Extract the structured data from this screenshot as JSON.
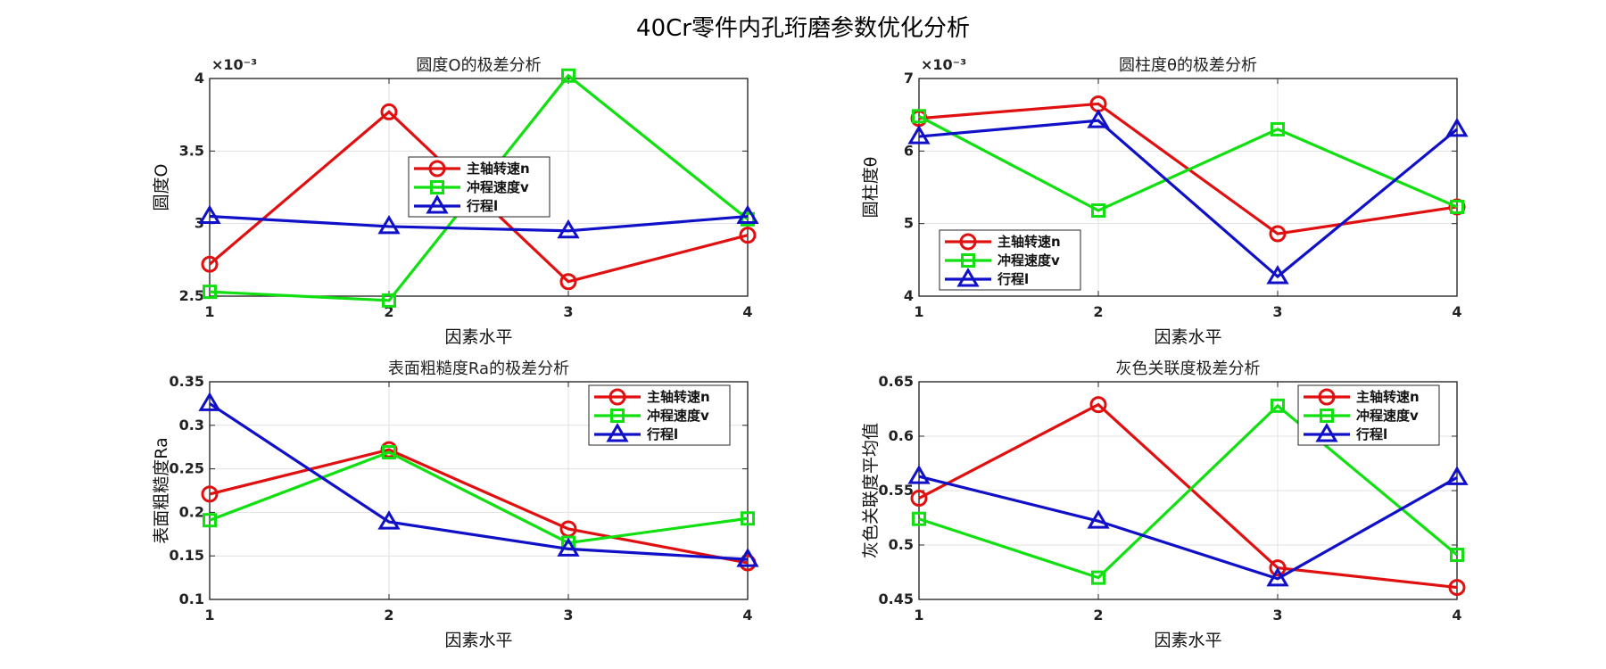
{
  "figure_title": "40Cr零件内孔珩磨参数优化分析",
  "chart_data": [
    {
      "type": "line",
      "title": "圆度O的极差分析",
      "xlabel": "因素水平",
      "ylabel": "圆度O",
      "exponent_label": "×10⁻³",
      "categories": [
        "1",
        "2",
        "3",
        "4"
      ],
      "x": [
        1,
        2,
        3,
        4
      ],
      "xlim": [
        1,
        4
      ],
      "ylim": [
        2.5,
        4
      ],
      "yticks": [
        2.5,
        3,
        3.5,
        4
      ],
      "ytick_labels": [
        "2.5",
        "3",
        "3.5",
        "4"
      ],
      "legend_position": "center",
      "series": [
        {
          "name": "主轴转速n",
          "color": "#e01010",
          "marker": "circle",
          "values": [
            2.72,
            3.77,
            2.6,
            2.92
          ]
        },
        {
          "name": "冲程速度v",
          "color": "#10e010",
          "marker": "square",
          "values": [
            2.53,
            2.47,
            4.02,
            3.03
          ]
        },
        {
          "name": "行程l",
          "color": "#1010c8",
          "marker": "triangle",
          "values": [
            3.05,
            2.98,
            2.95,
            3.05
          ]
        }
      ]
    },
    {
      "type": "line",
      "title": "圆柱度θ的极差分析",
      "xlabel": "因素水平",
      "ylabel": "圆柱度θ",
      "exponent_label": "×10⁻³",
      "categories": [
        "1",
        "2",
        "3",
        "4"
      ],
      "x": [
        1,
        2,
        3,
        4
      ],
      "xlim": [
        1,
        4
      ],
      "ylim": [
        4,
        7
      ],
      "yticks": [
        4,
        5,
        6,
        7
      ],
      "ytick_labels": [
        "4",
        "5",
        "6",
        "7"
      ],
      "legend_position": "bottom-left",
      "series": [
        {
          "name": "主轴转速n",
          "color": "#e01010",
          "marker": "circle",
          "values": [
            6.45,
            6.65,
            4.86,
            5.23
          ]
        },
        {
          "name": "冲程速度v",
          "color": "#10e010",
          "marker": "square",
          "values": [
            6.48,
            5.18,
            6.3,
            5.23
          ]
        },
        {
          "name": "行程l",
          "color": "#1010c8",
          "marker": "triangle",
          "values": [
            6.2,
            6.42,
            4.27,
            6.3
          ]
        }
      ]
    },
    {
      "type": "line",
      "title": "表面粗糙度Ra的极差分析",
      "xlabel": "因素水平",
      "ylabel": "表面粗糙度Ra",
      "exponent_label": "",
      "categories": [
        "1",
        "2",
        "3",
        "4"
      ],
      "x": [
        1,
        2,
        3,
        4
      ],
      "xlim": [
        1,
        4
      ],
      "ylim": [
        0.1,
        0.35
      ],
      "yticks": [
        0.1,
        0.15,
        0.2,
        0.25,
        0.3,
        0.35
      ],
      "ytick_labels": [
        "0.1",
        "0.15",
        "0.2",
        "0.25",
        "0.3",
        "0.35"
      ],
      "legend_position": "top-right",
      "series": [
        {
          "name": "主轴转速n",
          "color": "#e01010",
          "marker": "circle",
          "values": [
            0.221,
            0.272,
            0.181,
            0.142
          ]
        },
        {
          "name": "冲程速度v",
          "color": "#10e010",
          "marker": "square",
          "values": [
            0.191,
            0.269,
            0.165,
            0.193
          ]
        },
        {
          "name": "行程l",
          "color": "#1010c8",
          "marker": "triangle",
          "values": [
            0.325,
            0.189,
            0.158,
            0.146
          ]
        }
      ]
    },
    {
      "type": "line",
      "title": "灰色关联度极差分析",
      "xlabel": "因素水平",
      "ylabel": "灰色关联度平均值",
      "exponent_label": "",
      "categories": [
        "1",
        "2",
        "3",
        "4"
      ],
      "x": [
        1,
        2,
        3,
        4
      ],
      "xlim": [
        1,
        4
      ],
      "ylim": [
        0.45,
        0.65
      ],
      "yticks": [
        0.45,
        0.5,
        0.55,
        0.6,
        0.65
      ],
      "ytick_labels": [
        "0.45",
        "0.5",
        "0.55",
        "0.6",
        "0.65"
      ],
      "legend_position": "top-right",
      "series": [
        {
          "name": "主轴转速n",
          "color": "#e01010",
          "marker": "circle",
          "values": [
            0.543,
            0.629,
            0.479,
            0.461
          ]
        },
        {
          "name": "冲程速度v",
          "color": "#10e010",
          "marker": "square",
          "values": [
            0.524,
            0.47,
            0.628,
            0.491
          ]
        },
        {
          "name": "行程l",
          "color": "#1010c8",
          "marker": "triangle",
          "values": [
            0.563,
            0.522,
            0.469,
            0.562
          ]
        }
      ]
    }
  ]
}
